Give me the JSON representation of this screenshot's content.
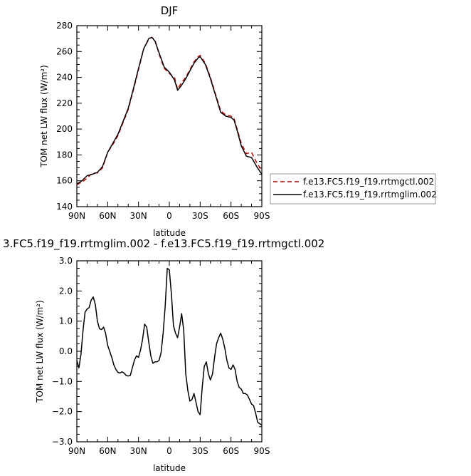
{
  "chart_data": [
    {
      "type": "line",
      "title": "DJF",
      "xlabel": "latitude",
      "ylabel": "TOM net LW flux (W/m²)",
      "ylim": [
        140,
        280
      ],
      "yticks": [
        140,
        160,
        180,
        200,
        220,
        240,
        260,
        280
      ],
      "xlim": [
        90,
        -90
      ],
      "xticks": [
        90,
        60,
        30,
        0,
        -30,
        -60,
        -90
      ],
      "xtick_labels": [
        "90N",
        "60N",
        "30N",
        "0",
        "30S",
        "60S",
        "90S"
      ],
      "legend_position": "right",
      "series": [
        {
          "name": "f.e13.FC5.f19_f19.rrtmgctl.002",
          "color": "#cc0000",
          "dash": true,
          "x": [
            90,
            85,
            80,
            75,
            70,
            65,
            60,
            55,
            50,
            45,
            40,
            35,
            30,
            25,
            20,
            17,
            14,
            10,
            5,
            0,
            -5,
            -8,
            -12,
            -16,
            -20,
            -24,
            -28,
            -30,
            -35,
            -40,
            -45,
            -50,
            -55,
            -60,
            -63,
            -66,
            -70,
            -75,
            -80,
            -85,
            -90
          ],
          "y": [
            157,
            159,
            162,
            166,
            166,
            170,
            182,
            188,
            195,
            205,
            215,
            230,
            246,
            262,
            269.5,
            271,
            269,
            258,
            247,
            243,
            240,
            231,
            236,
            240,
            246,
            252,
            256,
            257,
            251,
            240,
            227,
            214,
            211,
            210,
            208,
            200,
            189,
            181,
            182,
            174,
            168
          ]
        },
        {
          "name": "f.e13.FC5.f19_f19.rrtmglim.002",
          "color": "#000000",
          "dash": false,
          "x": [
            90,
            85,
            80,
            75,
            70,
            65,
            60,
            55,
            50,
            45,
            40,
            35,
            30,
            25,
            20,
            17,
            14,
            10,
            5,
            0,
            -5,
            -8,
            -12,
            -16,
            -20,
            -24,
            -28,
            -30,
            -35,
            -40,
            -45,
            -50,
            -55,
            -60,
            -63,
            -66,
            -70,
            -75,
            -80,
            -85,
            -90
          ],
          "y": [
            157.5,
            160,
            164,
            165,
            166.5,
            171,
            182,
            189,
            196,
            206,
            216,
            231,
            247,
            262,
            270,
            271,
            268,
            259,
            248,
            244,
            238,
            230,
            234,
            239,
            245,
            251,
            255,
            256,
            250,
            239,
            226,
            213,
            210,
            209,
            207,
            199,
            187,
            179,
            178,
            171,
            165
          ]
        }
      ]
    },
    {
      "type": "line",
      "title": "3.FC5.f19_f19.rrtmglim.002 - f.e13.FC5.f19_f19.rrtmgctl.002",
      "xlabel": "latitude",
      "ylabel": "TOM net LW flux (W/m²)",
      "ylim": [
        -3.0,
        3.0
      ],
      "yticks": [
        -3.0,
        -2.0,
        -1.0,
        0.0,
        1.0,
        2.0,
        3.0
      ],
      "ytick_labels": [
        "−3.0",
        "−2.0",
        "−1.0",
        "0.0",
        "1.0",
        "2.0",
        "3.0"
      ],
      "xlim": [
        90,
        -90
      ],
      "xticks": [
        90,
        60,
        30,
        0,
        -30,
        -60,
        -90
      ],
      "xtick_labels": [
        "90N",
        "60N",
        "30N",
        "0",
        "30S",
        "60S",
        "90S"
      ],
      "series": [
        {
          "color": "#000000",
          "x": [
            90,
            88,
            86,
            84,
            82,
            80,
            78,
            76,
            74,
            72,
            70,
            68,
            66,
            64,
            62,
            60,
            58,
            56,
            54,
            52,
            50,
            48,
            46,
            44,
            42,
            40,
            38,
            36,
            34,
            32,
            30,
            28,
            26,
            24,
            22,
            20,
            18,
            16,
            14,
            12,
            10,
            8,
            6,
            4,
            2,
            0,
            -2,
            -4,
            -6,
            -8,
            -10,
            -12,
            -14,
            -16,
            -18,
            -20,
            -22,
            -24,
            -26,
            -28,
            -30,
            -32,
            -34,
            -36,
            -38,
            -40,
            -42,
            -44,
            -46,
            -48,
            -50,
            -52,
            -54,
            -56,
            -58,
            -60,
            -62,
            -64,
            -66,
            -68,
            -70,
            -72,
            -74,
            -76,
            -78,
            -80,
            -82,
            -84,
            -86,
            -88,
            -90
          ],
          "y": [
            -0.3,
            -0.55,
            -0.1,
            0.7,
            1.3,
            1.4,
            1.45,
            1.7,
            1.8,
            1.55,
            1.0,
            0.75,
            0.72,
            0.8,
            0.6,
            0.2,
            0.0,
            -0.2,
            -0.45,
            -0.6,
            -0.7,
            -0.72,
            -0.68,
            -0.72,
            -0.8,
            -0.82,
            -0.8,
            -0.55,
            -0.3,
            -0.15,
            -0.2,
            0.05,
            0.4,
            0.9,
            0.8,
            0.3,
            -0.15,
            -0.4,
            -0.35,
            -0.35,
            -0.3,
            -0.05,
            0.6,
            1.5,
            2.75,
            2.7,
            1.9,
            0.85,
            0.6,
            0.45,
            0.8,
            1.25,
            0.7,
            -0.75,
            -1.3,
            -1.65,
            -1.6,
            -1.4,
            -1.7,
            -2.0,
            -2.1,
            -1.2,
            -0.5,
            -0.35,
            -0.75,
            -0.95,
            -0.75,
            -0.2,
            0.25,
            0.45,
            0.6,
            0.4,
            0.1,
            -0.3,
            -0.55,
            -0.6,
            -0.45,
            -0.6,
            -1.0,
            -1.2,
            -1.25,
            -1.4,
            -1.4,
            -1.45,
            -1.6,
            -1.75,
            -1.8,
            -2.05,
            -2.35,
            -2.4,
            -2.45
          ]
        }
      ]
    }
  ]
}
